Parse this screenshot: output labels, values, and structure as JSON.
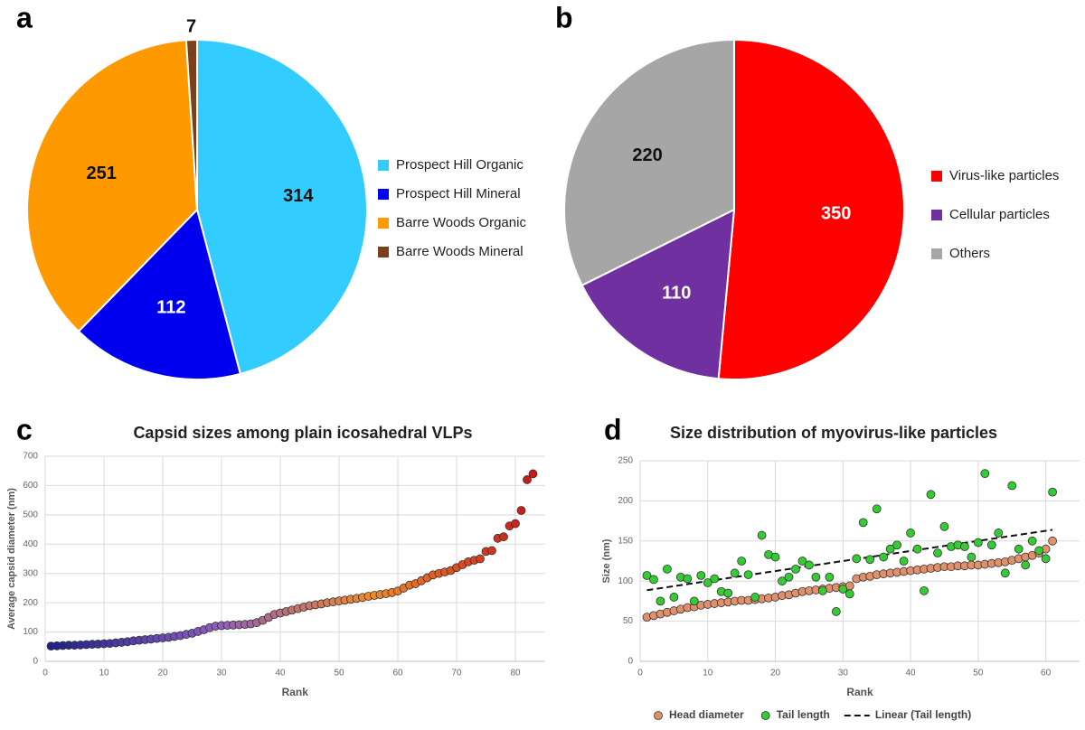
{
  "chart_data": [
    {
      "type": "pie",
      "panel": "a",
      "categories": [
        "Prospect Hill Organic",
        "Prospect Hill Mineral",
        "Barre Woods Organic",
        "Barre Woods Mineral"
      ],
      "values": [
        314,
        112,
        251,
        7
      ],
      "colors": [
        "#33ccff",
        "#0000ee",
        "#ff9900",
        "#7b3f1c"
      ],
      "label_colors": [
        "#111111",
        "#ffffff",
        "#111111",
        "#111111"
      ]
    },
    {
      "type": "pie",
      "panel": "b",
      "categories": [
        "Virus-like particles",
        "Cellular particles",
        "Others"
      ],
      "values": [
        350,
        110,
        220
      ],
      "colors": [
        "#ff0000",
        "#7030a0",
        "#a6a6a6"
      ],
      "label_colors": [
        "#ffffff",
        "#ffffff",
        "#111111"
      ]
    },
    {
      "type": "scatter",
      "panel": "c",
      "title": "Capsid sizes among plain icosahedral VLPs",
      "x_label": "Rank",
      "y_label": "Average capsid diameter (nm)",
      "xlim": [
        0,
        85
      ],
      "xticks": [
        0,
        10,
        20,
        30,
        40,
        50,
        60,
        70,
        80
      ],
      "ylim": [
        0,
        700
      ],
      "yticks": [
        0,
        100,
        200,
        300,
        400,
        500,
        600,
        700
      ],
      "grid": true,
      "x": [
        1,
        2,
        3,
        4,
        5,
        6,
        7,
        8,
        9,
        10,
        11,
        12,
        13,
        14,
        15,
        16,
        17,
        18,
        19,
        20,
        21,
        22,
        23,
        24,
        25,
        26,
        27,
        28,
        29,
        30,
        31,
        32,
        33,
        34,
        35,
        36,
        37,
        38,
        39,
        40,
        41,
        42,
        43,
        44,
        45,
        46,
        47,
        48,
        49,
        50,
        51,
        52,
        53,
        54,
        55,
        56,
        57,
        58,
        59,
        60,
        61,
        62,
        63,
        64,
        65,
        66,
        67,
        68,
        69,
        70,
        71,
        72,
        73,
        74,
        75,
        76,
        77,
        78,
        79,
        80,
        81,
        82,
        83
      ],
      "series": [
        {
          "color_stops": [
            "#1f1f8f",
            "#8a5cc0",
            "#f08a2a",
            "#c81818"
          ],
          "values": [
            52,
            53,
            54,
            55,
            55,
            56,
            57,
            58,
            59,
            60,
            61,
            63,
            65,
            67,
            70,
            72,
            74,
            76,
            78,
            80,
            82,
            85,
            88,
            92,
            96,
            102,
            108,
            115,
            120,
            122,
            123,
            124,
            125,
            126,
            128,
            132,
            140,
            150,
            160,
            165,
            170,
            175,
            180,
            185,
            190,
            193,
            196,
            200,
            203,
            206,
            209,
            212,
            215,
            218,
            222,
            225,
            228,
            231,
            235,
            240,
            250,
            260,
            265,
            275,
            285,
            295,
            300,
            305,
            310,
            320,
            330,
            340,
            345,
            350,
            375,
            378,
            420,
            425,
            462,
            470,
            515,
            620,
            640
          ]
        }
      ]
    },
    {
      "type": "scatter",
      "panel": "d",
      "title": "Size distribution of myovirus-like particles",
      "x_label": "Rank",
      "y_label": "Size (nm)",
      "xlim": [
        0,
        65
      ],
      "xticks": [
        0,
        10,
        20,
        30,
        40,
        50,
        60
      ],
      "ylim": [
        0,
        250
      ],
      "yticks": [
        0,
        50,
        100,
        150,
        200,
        250
      ],
      "grid": true,
      "x": [
        1,
        2,
        3,
        4,
        5,
        6,
        7,
        8,
        9,
        10,
        11,
        12,
        13,
        14,
        15,
        16,
        17,
        18,
        19,
        20,
        21,
        22,
        23,
        24,
        25,
        26,
        27,
        28,
        29,
        30,
        31,
        32,
        33,
        34,
        35,
        36,
        37,
        38,
        39,
        40,
        41,
        42,
        43,
        44,
        45,
        46,
        47,
        48,
        49,
        50,
        51,
        52,
        53,
        54,
        55,
        56,
        57,
        58,
        59,
        60,
        61
      ],
      "series": [
        {
          "name": "Head diameter",
          "color": "#e0906a",
          "values": [
            55,
            57,
            59,
            61,
            63,
            65,
            67,
            68,
            70,
            71,
            72,
            73,
            74,
            75,
            76,
            76,
            77,
            78,
            79,
            80,
            82,
            83,
            85,
            87,
            88,
            89,
            90,
            91,
            92,
            93,
            94,
            103,
            105,
            106,
            108,
            109,
            110,
            111,
            112,
            113,
            114,
            115,
            116,
            117,
            118,
            118,
            119,
            119,
            120,
            120,
            121,
            122,
            123,
            124,
            126,
            128,
            130,
            132,
            135,
            140,
            150
          ]
        },
        {
          "name": "Tail length",
          "color": "#33cc33",
          "values": [
            107,
            102,
            75,
            115,
            80,
            105,
            103,
            75,
            107,
            98,
            103,
            87,
            85,
            110,
            125,
            108,
            80,
            157,
            133,
            130,
            100,
            105,
            115,
            125,
            120,
            105,
            88,
            105,
            62,
            90,
            84,
            128,
            173,
            127,
            190,
            130,
            140,
            145,
            125,
            160,
            140,
            88,
            208,
            135,
            168,
            143,
            145,
            143,
            130,
            148,
            234,
            145,
            160,
            110,
            219,
            140,
            120,
            150,
            138,
            128,
            211
          ]
        }
      ],
      "trendline": {
        "name": "Linear (Tail length)",
        "series": 1,
        "color": "#111111"
      }
    }
  ]
}
